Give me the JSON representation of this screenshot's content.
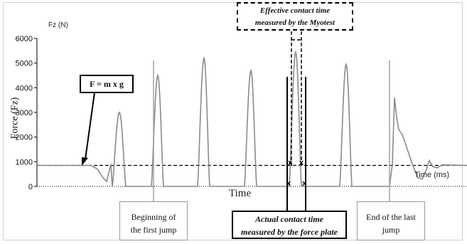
{
  "chart_data": {
    "type": "line",
    "title": "",
    "ylabel": "Force (Fz)",
    "yunit_label": "Fz (N)",
    "xlabel": "Time",
    "xaxis_unit_label": "Time (ms)",
    "ylim": [
      0,
      6000
    ],
    "yticks": [
      "0",
      "1000",
      "2000",
      "3000",
      "4000",
      "5000",
      "6000"
    ],
    "grid": false,
    "legend": "none",
    "body_weight_force": 850,
    "series": [
      {
        "color": "#8a8a8a",
        "jump_peaks_N": [
          3000,
          4500,
          5200,
          4700,
          5450,
          4950,
          3600
        ]
      }
    ],
    "reference_lines": [
      {
        "label": "F = m x g",
        "value": 850,
        "style": "dashed"
      },
      {
        "value": 0,
        "style": "dotted"
      }
    ],
    "annotations": {
      "formula": "F = m x g",
      "effective_contact": [
        "Effective contact time",
        "measured by the Myotest"
      ],
      "actual_contact": [
        "Actual contact time",
        "measured by the force plate"
      ],
      "beginning": [
        "Beginning of",
        "the first jump"
      ],
      "end": [
        "End of the last",
        "jump"
      ],
      "marker_glyph": "x"
    }
  }
}
